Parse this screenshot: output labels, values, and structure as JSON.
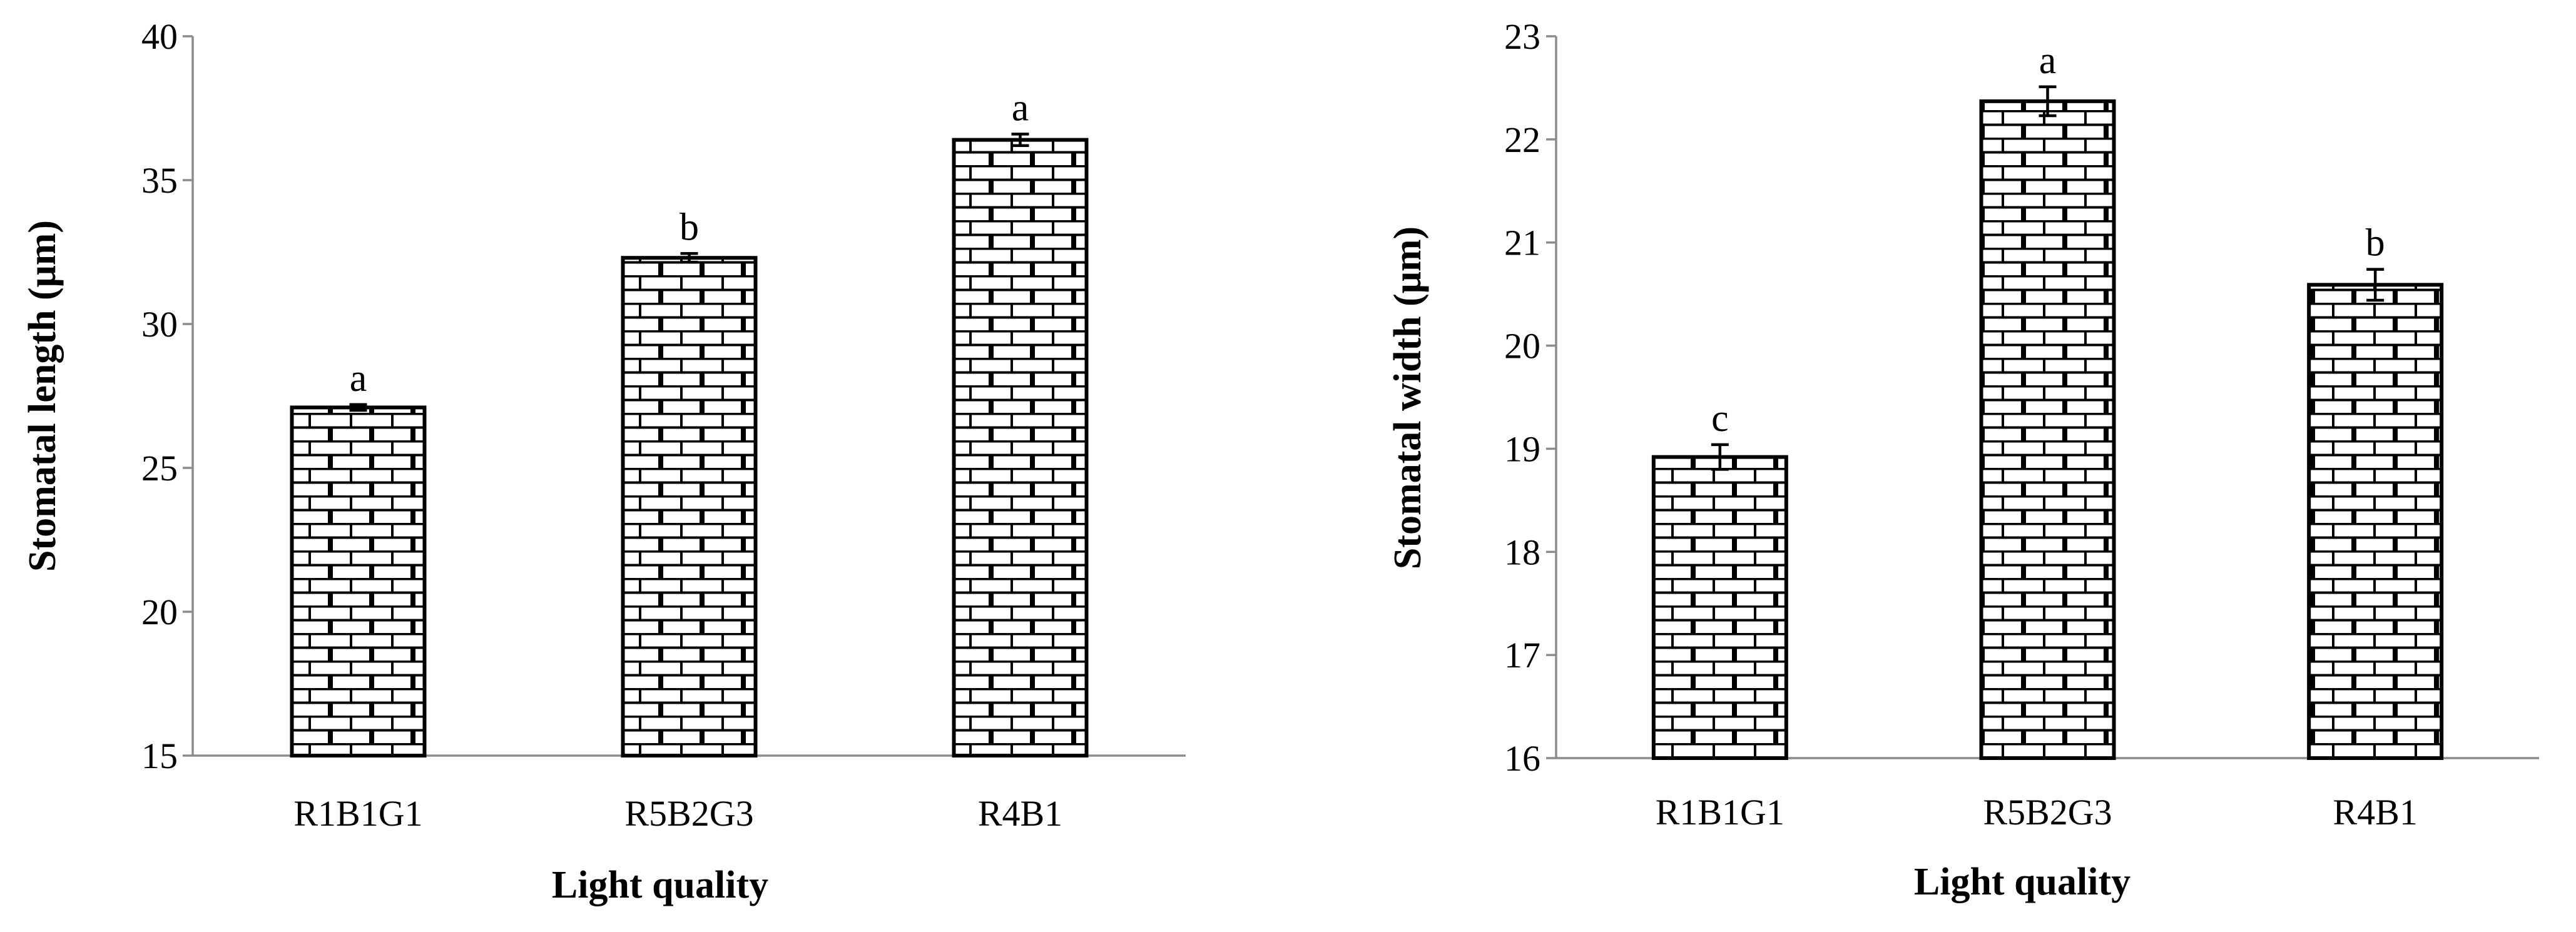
{
  "chart_data": [
    {
      "type": "bar",
      "categories": [
        "R1B1G1",
        "R5B2G3",
        "R4B1"
      ],
      "values": [
        27.1,
        32.3,
        36.4
      ],
      "errors": [
        0.1,
        0.15,
        0.2
      ],
      "significance": [
        "a",
        "b",
        "a"
      ],
      "xlabel": "Light quality",
      "ylabel": "Stomatal length (μm)",
      "ylim": [
        15,
        40
      ],
      "yticks": [
        "15",
        "20",
        "25",
        "30",
        "35",
        "40"
      ],
      "pattern": "brick",
      "grid": false
    },
    {
      "type": "bar",
      "categories": [
        "R1B1G1",
        "R5B2G3",
        "R4B1"
      ],
      "values": [
        18.92,
        22.37,
        20.59
      ],
      "errors": [
        0.12,
        0.14,
        0.15
      ],
      "significance": [
        "c",
        "a",
        "b"
      ],
      "xlabel": "Light quality",
      "ylabel": "Stomatal width (μm)",
      "ylim": [
        16,
        23
      ],
      "yticks": [
        "16",
        "17",
        "18",
        "19",
        "20",
        "21",
        "22",
        "23"
      ],
      "pattern": "brick",
      "grid": false
    }
  ]
}
